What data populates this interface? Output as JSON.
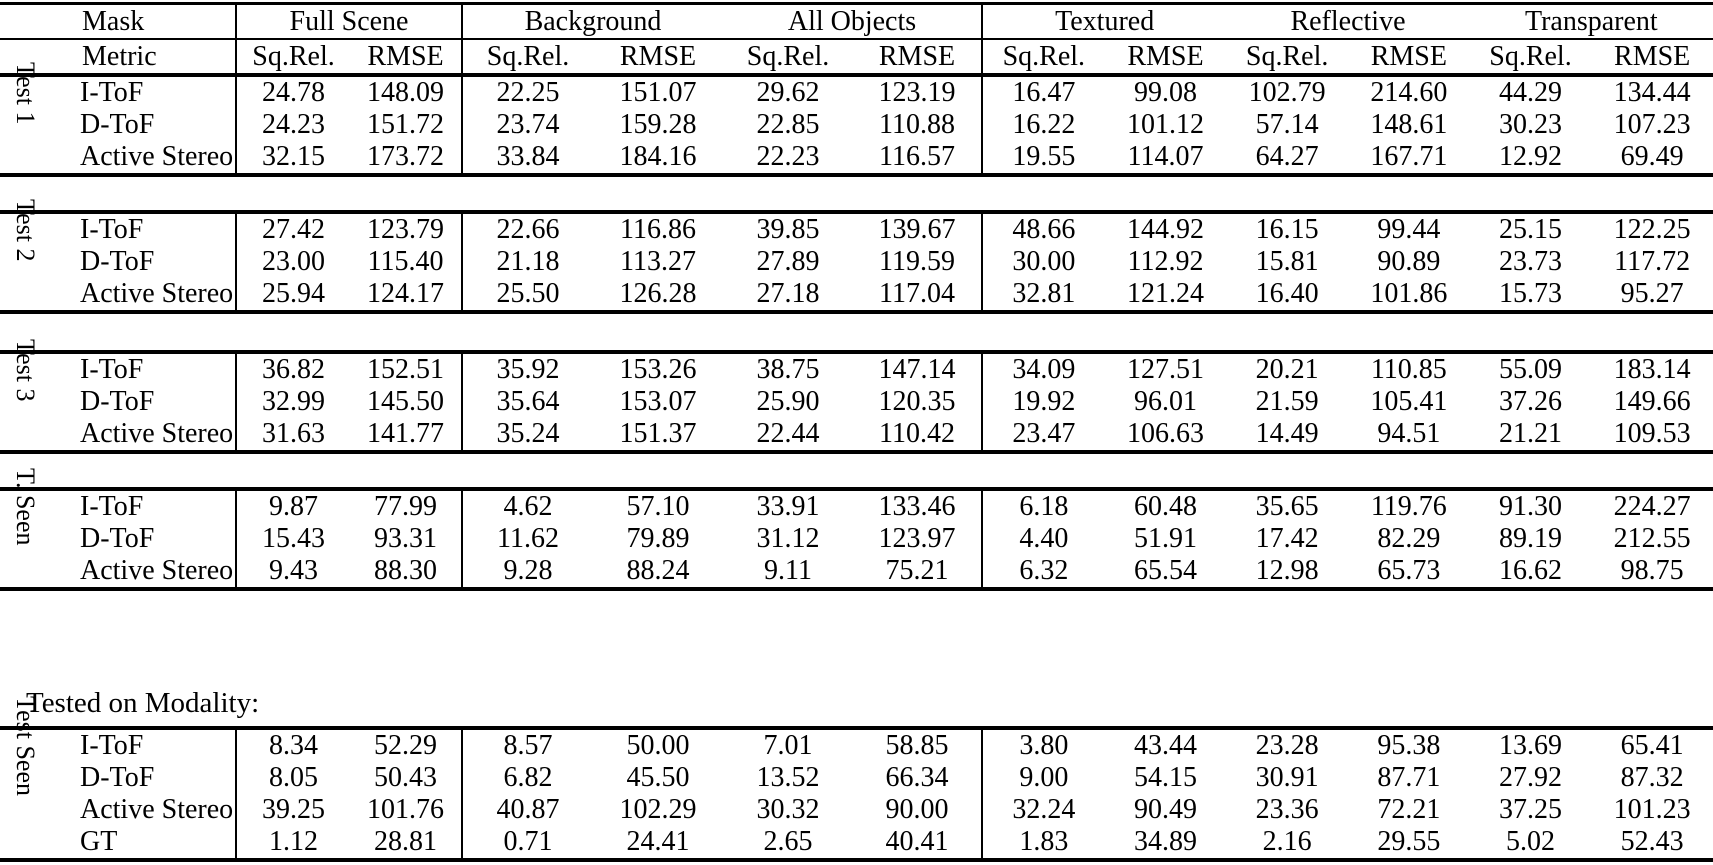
{
  "table": {
    "corner": {
      "mask_label": "Mask",
      "metric_label": "Metric"
    },
    "groups": [
      "Full Scene",
      "Background",
      "All Objects",
      "Textured",
      "Reflective",
      "Transparent"
    ],
    "metrics": [
      "Sq.Rel.",
      "RMSE"
    ],
    "note": "Tested on Modality:",
    "colors": {
      "text": "#000000",
      "background": "#ffffff",
      "rule": "#000000"
    },
    "blocks": [
      {
        "label": "Test 1",
        "rows": [
          {
            "method": "I-ToF",
            "values": [
              "24.78",
              "148.09",
              "22.25",
              "151.07",
              "29.62",
              "123.19",
              "16.47",
              "99.08",
              "102.79",
              "214.60",
              "44.29",
              "134.44"
            ]
          },
          {
            "method": "D-ToF",
            "values": [
              "24.23",
              "151.72",
              "23.74",
              "159.28",
              "22.85",
              "110.88",
              "16.22",
              "101.12",
              "57.14",
              "148.61",
              "30.23",
              "107.23"
            ]
          },
          {
            "method": "Active Stereo",
            "values": [
              "32.15",
              "173.72",
              "33.84",
              "184.16",
              "22.23",
              "116.57",
              "19.55",
              "114.07",
              "64.27",
              "167.71",
              "12.92",
              "69.49"
            ]
          }
        ]
      },
      {
        "label": "Test 2",
        "rows": [
          {
            "method": "I-ToF",
            "values": [
              "27.42",
              "123.79",
              "22.66",
              "116.86",
              "39.85",
              "139.67",
              "48.66",
              "144.92",
              "16.15",
              "99.44",
              "25.15",
              "122.25"
            ]
          },
          {
            "method": "D-ToF",
            "values": [
              "23.00",
              "115.40",
              "21.18",
              "113.27",
              "27.89",
              "119.59",
              "30.00",
              "112.92",
              "15.81",
              "90.89",
              "23.73",
              "117.72"
            ]
          },
          {
            "method": "Active Stereo",
            "values": [
              "25.94",
              "124.17",
              "25.50",
              "126.28",
              "27.18",
              "117.04",
              "32.81",
              "121.24",
              "16.40",
              "101.86",
              "15.73",
              "95.27"
            ]
          }
        ]
      },
      {
        "label": "Test 3",
        "rows": [
          {
            "method": "I-ToF",
            "values": [
              "36.82",
              "152.51",
              "35.92",
              "153.26",
              "38.75",
              "147.14",
              "34.09",
              "127.51",
              "20.21",
              "110.85",
              "55.09",
              "183.14"
            ]
          },
          {
            "method": "D-ToF",
            "values": [
              "32.99",
              "145.50",
              "35.64",
              "153.07",
              "25.90",
              "120.35",
              "19.92",
              "96.01",
              "21.59",
              "105.41",
              "37.26",
              "149.66"
            ]
          },
          {
            "method": "Active Stereo",
            "values": [
              "31.63",
              "141.77",
              "35.24",
              "151.37",
              "22.44",
              "110.42",
              "23.47",
              "106.63",
              "14.49",
              "94.51",
              "21.21",
              "109.53"
            ]
          }
        ]
      },
      {
        "label": "T. Seen",
        "rows": [
          {
            "method": "I-ToF",
            "values": [
              "9.87",
              "77.99",
              "4.62",
              "57.10",
              "33.91",
              "133.46",
              "6.18",
              "60.48",
              "35.65",
              "119.76",
              "91.30",
              "224.27"
            ]
          },
          {
            "method": "D-ToF",
            "values": [
              "15.43",
              "93.31",
              "11.62",
              "79.89",
              "31.12",
              "123.97",
              "4.40",
              "51.91",
              "17.42",
              "82.29",
              "89.19",
              "212.55"
            ]
          },
          {
            "method": "Active Stereo",
            "values": [
              "9.43",
              "88.30",
              "9.28",
              "88.24",
              "9.11",
              "75.21",
              "6.32",
              "65.54",
              "12.98",
              "65.73",
              "16.62",
              "98.75"
            ]
          }
        ]
      },
      {
        "label": "Test Seen",
        "rows": [
          {
            "method": "I-ToF",
            "values": [
              "8.34",
              "52.29",
              "8.57",
              "50.00",
              "7.01",
              "58.85",
              "3.80",
              "43.44",
              "23.28",
              "95.38",
              "13.69",
              "65.41"
            ]
          },
          {
            "method": "D-ToF",
            "values": [
              "8.05",
              "50.43",
              "6.82",
              "45.50",
              "13.52",
              "66.34",
              "9.00",
              "54.15",
              "30.91",
              "87.71",
              "27.92",
              "87.32"
            ]
          },
          {
            "method": "Active Stereo",
            "values": [
              "39.25",
              "101.76",
              "40.87",
              "102.29",
              "30.32",
              "90.00",
              "32.24",
              "90.49",
              "23.36",
              "72.21",
              "37.25",
              "101.23"
            ]
          },
          {
            "method": "GT",
            "values": [
              "1.12",
              "28.81",
              "0.71",
              "24.41",
              "2.65",
              "40.41",
              "1.83",
              "34.89",
              "2.16",
              "29.55",
              "5.02",
              "52.43"
            ]
          }
        ]
      }
    ]
  }
}
